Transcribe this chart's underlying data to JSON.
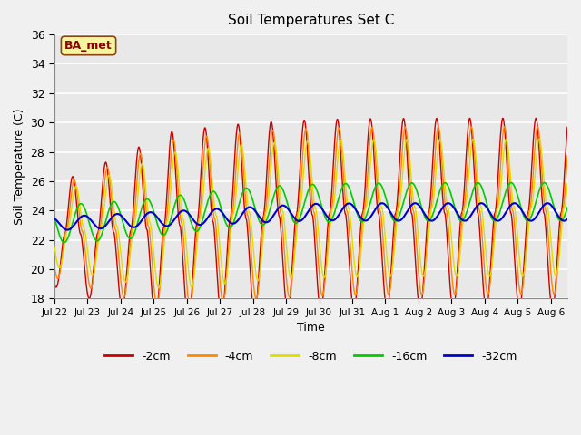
{
  "title": "Soil Temperatures Set C",
  "xlabel": "Time",
  "ylabel": "Soil Temperature (C)",
  "ylim": [
    18,
    36
  ],
  "annotation": "BA_met",
  "bg_color": "#e8e8e8",
  "grid_color": "white",
  "fig_bg": "#f0f0f0",
  "series": [
    {
      "label": "-2cm",
      "color": "#cc0000",
      "lw": 1.0
    },
    {
      "label": "-4cm",
      "color": "#ff8800",
      "lw": 1.0
    },
    {
      "label": "-8cm",
      "color": "#dddd00",
      "lw": 1.0
    },
    {
      "label": "-16cm",
      "color": "#00cc00",
      "lw": 1.2
    },
    {
      "label": "-32cm",
      "color": "#0000cc",
      "lw": 1.5
    }
  ],
  "xtick_labels": [
    "Jul 22",
    "Jul 23",
    "Jul 24",
    "Jul 25",
    "Jul 26",
    "Jul 27",
    "Jul 28",
    "Jul 29",
    "Jul 30",
    "Jul 31",
    "Aug 1",
    "Aug 2",
    "Aug 3",
    "Aug 4",
    "Aug 5",
    "Aug 6"
  ],
  "ytick_labels": [
    18,
    20,
    22,
    24,
    26,
    28,
    30,
    32,
    34,
    36
  ],
  "n_days": 15.5
}
